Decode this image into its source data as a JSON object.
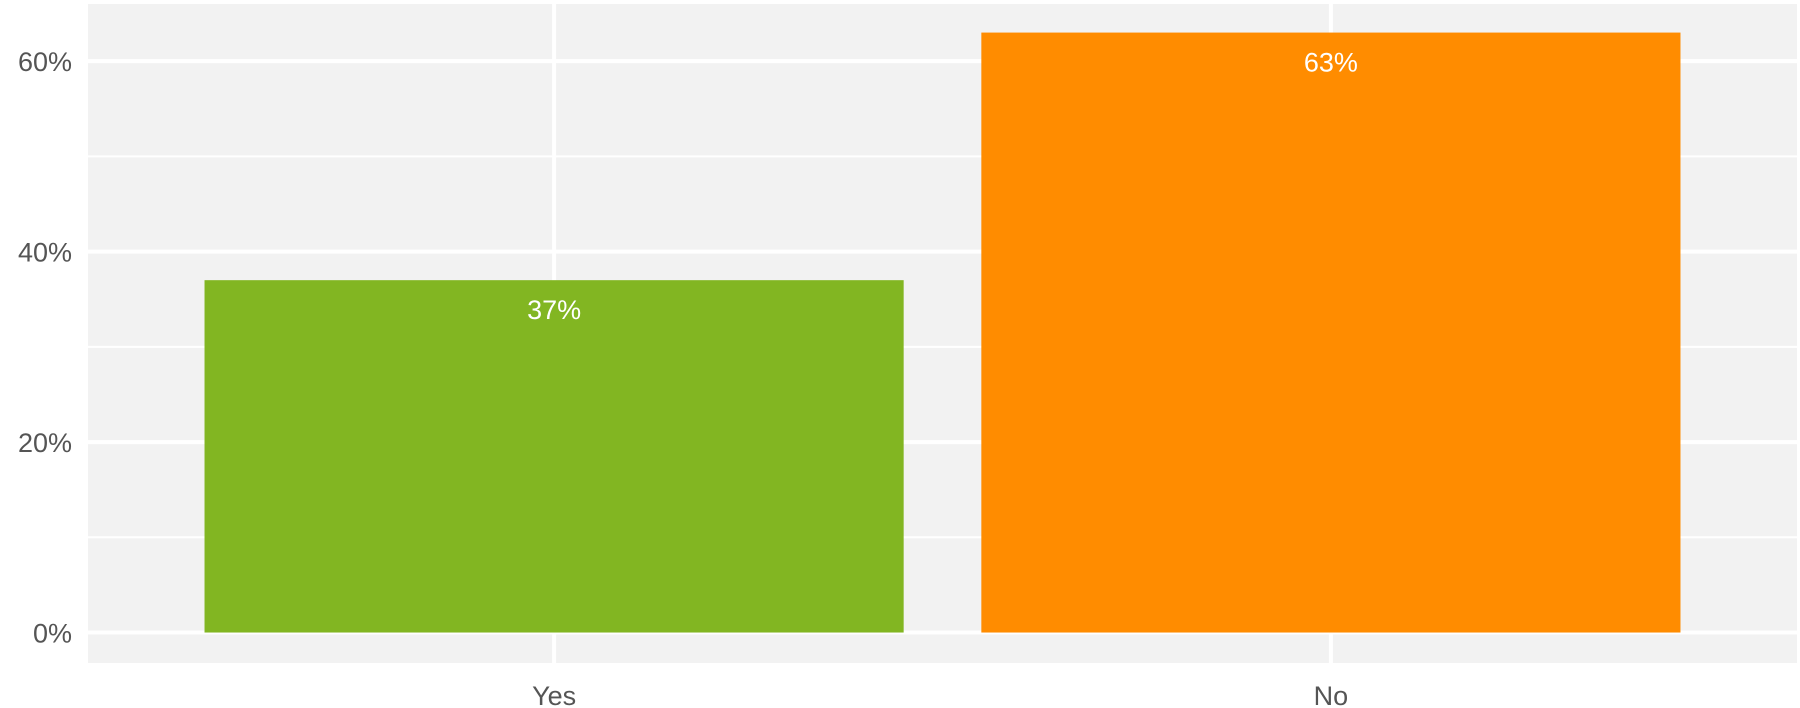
{
  "chart_data": {
    "type": "bar",
    "title": "",
    "xlabel": "",
    "ylabel": "",
    "categories": [
      "Yes",
      "No"
    ],
    "values": [
      37,
      63
    ],
    "value_labels": [
      "37%",
      "63%"
    ],
    "bar_colors": [
      "#82b622",
      "#ff8c00"
    ],
    "ylim": [
      -3.2,
      66
    ],
    "y_ticks": [
      0,
      20,
      40,
      60
    ],
    "y_tick_labels": [
      "0%",
      "20%",
      "40%",
      "60%"
    ],
    "grid": true,
    "legend": "none",
    "panel_background": "#f2f2f2",
    "grid_color": "#ffffff"
  }
}
